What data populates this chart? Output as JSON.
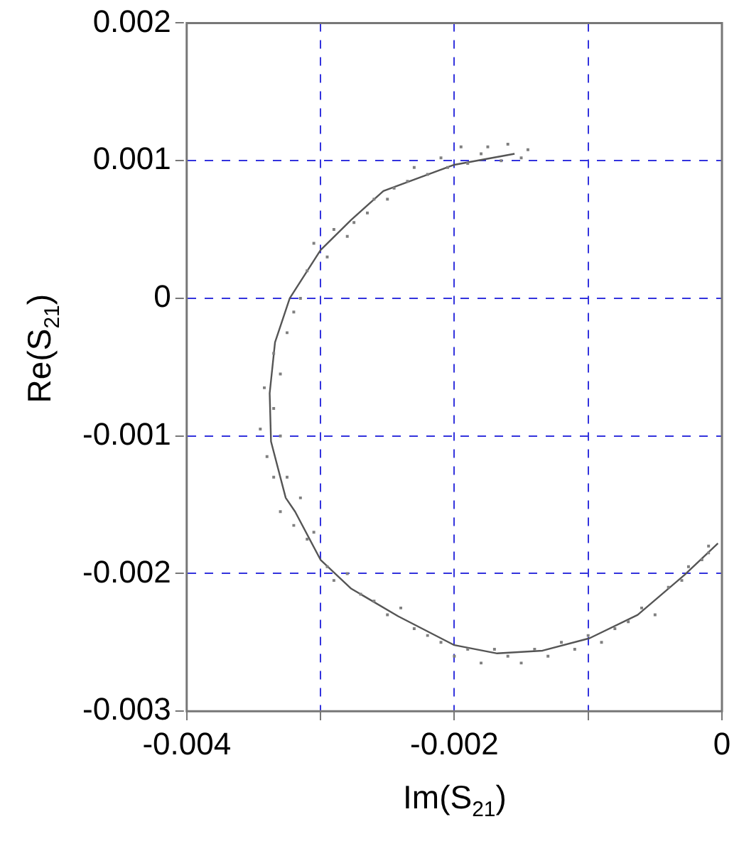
{
  "chart_data": {
    "type": "scatter",
    "xlabel": "Im(S$_{21}$)",
    "ylabel": "Re(S$_{21}$)",
    "xlim": [
      -0.004,
      0
    ],
    "ylim": [
      -0.003,
      0.002
    ],
    "xticks": [
      -0.004,
      {
        "value": -0.003,
        "label": null
      },
      -0.002,
      {
        "value": -0.001,
        "label": null
      },
      0
    ],
    "yticks": [
      -0.003,
      -0.002,
      -0.001,
      0,
      0.001,
      0.002
    ],
    "grid": true,
    "legend": false,
    "series": [
      {
        "type": "scatter",
        "color": "#808080",
        "marker": "square",
        "x": [
          -0.00145,
          -0.0015,
          -0.0016,
          -0.00165,
          -0.00175,
          -0.0018,
          -0.0019,
          -0.00195,
          -0.00205,
          -0.0021,
          -0.0022,
          -0.0023,
          -0.00235,
          -0.00245,
          -0.0025,
          -0.0026,
          -0.00265,
          -0.00275,
          -0.0028,
          -0.0029,
          -0.00295,
          -0.00305,
          -0.0031,
          -0.00315,
          -0.0032,
          -0.00325,
          -0.00335,
          -0.0033,
          -0.00342,
          -0.00335,
          -0.00345,
          -0.0033,
          -0.0034,
          -0.00335,
          -0.00325,
          -0.0033,
          -0.00315,
          -0.0032,
          -0.0031,
          -0.00305,
          -0.00295,
          -0.0029,
          -0.0028,
          -0.0027,
          -0.0026,
          -0.0025,
          -0.0024,
          -0.0023,
          -0.0022,
          -0.0021,
          -0.002,
          -0.0019,
          -0.0018,
          -0.0017,
          -0.0016,
          -0.0015,
          -0.0014,
          -0.0013,
          -0.0012,
          -0.0011,
          -0.001,
          -0.0009,
          -0.0008,
          -0.0007,
          -0.0006,
          -0.0005,
          -0.0004,
          -0.0003,
          -0.00025,
          -0.00015,
          -0.0001,
          -0.0001
        ],
        "values": [
          0.00108,
          0.00102,
          0.00112,
          0.001,
          0.0011,
          0.00105,
          0.00098,
          0.0011,
          0.00095,
          0.00102,
          0.0009,
          0.00095,
          0.00085,
          0.0008,
          0.00072,
          0.00072,
          0.00062,
          0.00055,
          0.00045,
          0.0005,
          0.0003,
          0.0004,
          0.0002,
          0,
          -0.0001,
          -0.00025,
          -0.0004,
          -0.00055,
          -0.00065,
          -0.0008,
          -0.00095,
          -0.001,
          -0.00115,
          -0.0013,
          -0.0013,
          -0.00155,
          -0.00145,
          -0.00165,
          -0.00175,
          -0.0017,
          -0.00195,
          -0.00205,
          -0.002,
          -0.00215,
          -0.0022,
          -0.0023,
          -0.00225,
          -0.0024,
          -0.00245,
          -0.0025,
          -0.0026,
          -0.00255,
          -0.00265,
          -0.00255,
          -0.0026,
          -0.00265,
          -0.00255,
          -0.0026,
          -0.0025,
          -0.00255,
          -0.00245,
          -0.0025,
          -0.0024,
          -0.00235,
          -0.00225,
          -0.0023,
          -0.0021,
          -0.00205,
          -0.00195,
          -0.0019,
          -0.00185,
          -0.0018
        ]
      },
      {
        "type": "line",
        "color": "#555555",
        "marker": "none",
        "line_style": "solid",
        "x": [
          -0.00155,
          -0.002,
          -0.00253,
          -0.00277,
          -0.003,
          -0.00323,
          -0.00334,
          -0.00338,
          -0.00337,
          -0.00326,
          -0.00319,
          -0.003,
          -0.00277,
          -0.00242,
          -0.002,
          -0.00168,
          -0.00134,
          -0.00099,
          -0.00063,
          -0.00028,
          -3e-05
        ],
        "values": [
          0.00105,
          0.00097,
          0.00078,
          0.00057,
          0.00035,
          0,
          -0.00032,
          -0.00069,
          -0.00104,
          -0.00145,
          -0.00155,
          -0.0019,
          -0.00211,
          -0.00231,
          -0.00252,
          -0.00258,
          -0.00256,
          -0.00247,
          -0.0023,
          -0.00201,
          -0.00178
        ]
      }
    ]
  }
}
